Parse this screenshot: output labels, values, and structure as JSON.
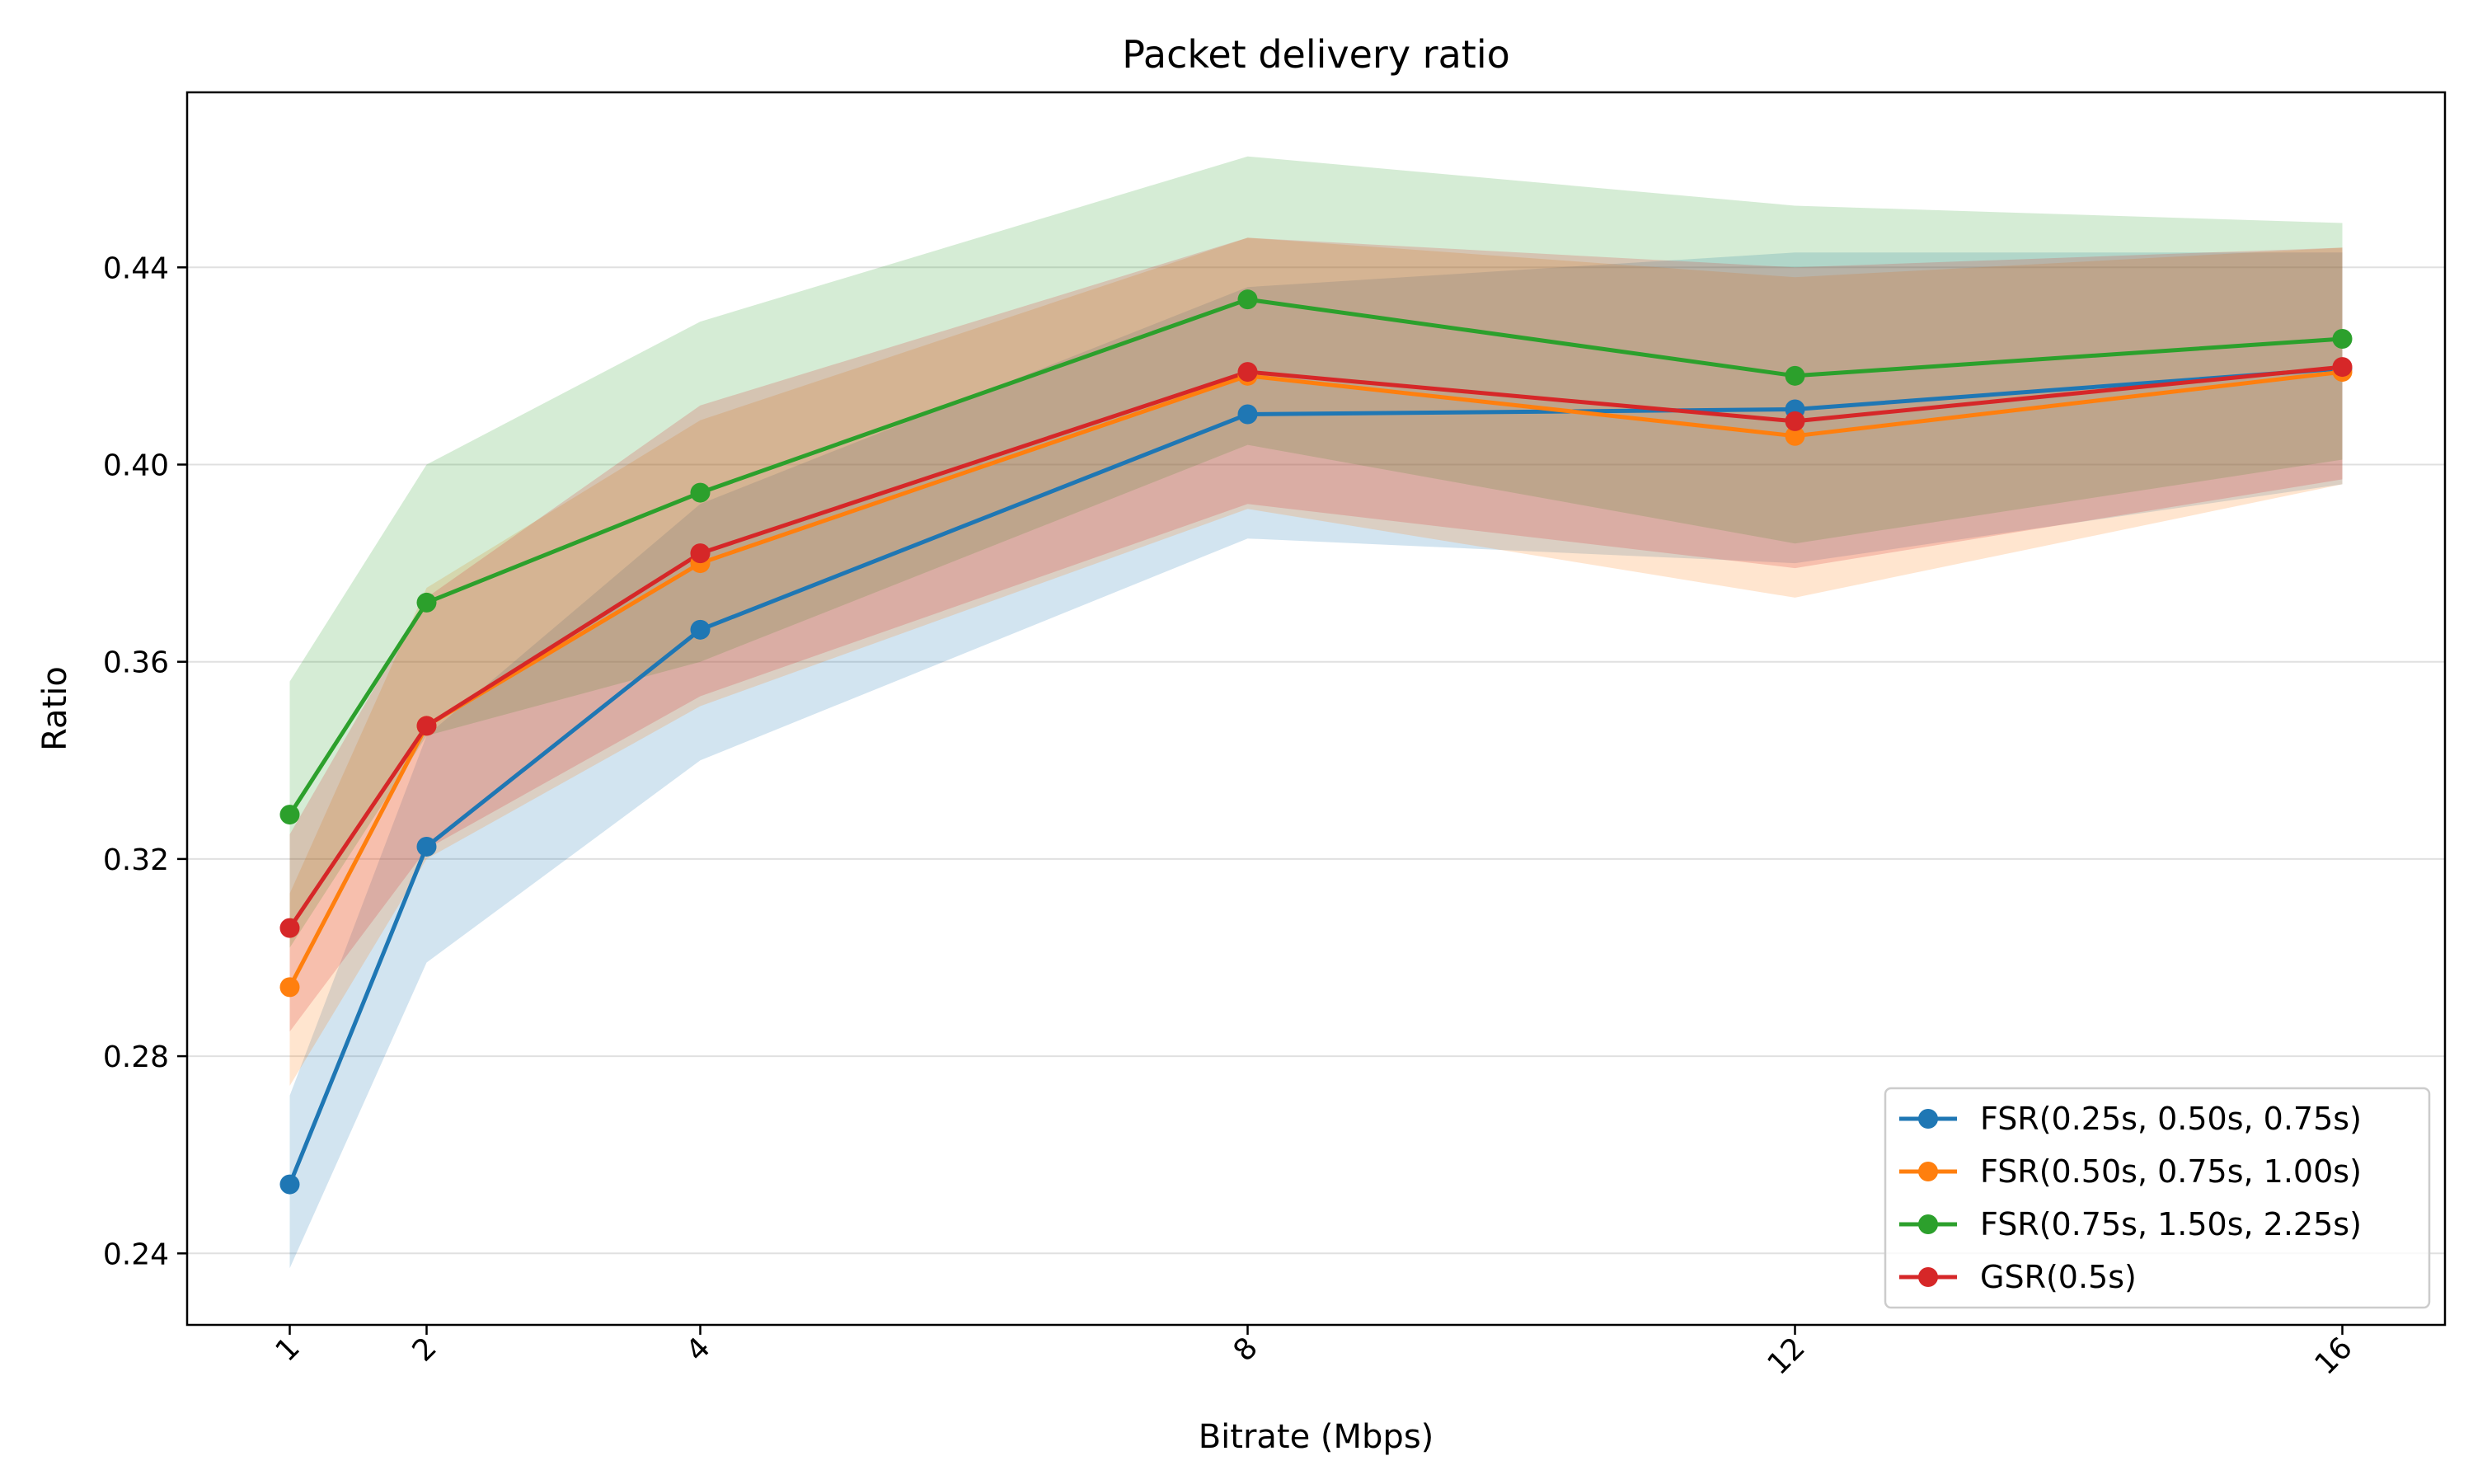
{
  "chart_data": {
    "type": "line",
    "title": "Packet delivery ratio",
    "xlabel": "Bitrate (Mbps)",
    "ylabel": "Ratio",
    "x": [
      1,
      2,
      4,
      8,
      12,
      16
    ],
    "xtick_labels": [
      "1",
      "2",
      "4",
      "8",
      "12",
      "16"
    ],
    "ytick_values": [
      0.24,
      0.28,
      0.32,
      0.36,
      0.4,
      0.44
    ],
    "ytick_labels": [
      "0.24",
      "0.28",
      "0.32",
      "0.36",
      "0.40",
      "0.44"
    ],
    "xlim": [
      0.25,
      16.75
    ],
    "ylim": [
      0.2255,
      0.4755
    ],
    "grid": "horizontal",
    "legend_position": "lower right",
    "series": [
      {
        "name": "FSR(0.25s, 0.50s, 0.75s)",
        "color": "#1f77b4",
        "values": [
          0.254,
          0.3225,
          0.3665,
          0.4102,
          0.4112,
          0.4195
        ],
        "lower": [
          0.237,
          0.299,
          0.34,
          0.385,
          0.38,
          0.396
        ],
        "upper": [
          0.272,
          0.345,
          0.392,
          0.436,
          0.443,
          0.443
        ]
      },
      {
        "name": "FSR(0.50s, 0.75s, 1.00s)",
        "color": "#ff7f0e",
        "values": [
          0.294,
          0.347,
          0.38,
          0.418,
          0.4058,
          0.4188
        ],
        "lower": [
          0.274,
          0.32,
          0.351,
          0.391,
          0.373,
          0.396
        ],
        "upper": [
          0.313,
          0.375,
          0.409,
          0.446,
          0.438,
          0.444
        ]
      },
      {
        "name": "FSR(0.75s, 1.50s, 2.25s)",
        "color": "#2ca02c",
        "values": [
          0.329,
          0.372,
          0.3943,
          0.4335,
          0.418,
          0.4255
        ],
        "lower": [
          0.302,
          0.345,
          0.36,
          0.404,
          0.384,
          0.401
        ],
        "upper": [
          0.356,
          0.4,
          0.429,
          0.4625,
          0.4525,
          0.449
        ]
      },
      {
        "name": "GSR(0.5s)",
        "color": "#d62728",
        "values": [
          0.306,
          0.347,
          0.382,
          0.4188,
          0.4088,
          0.4198
        ],
        "lower": [
          0.285,
          0.322,
          0.353,
          0.392,
          0.379,
          0.397
        ],
        "upper": [
          0.325,
          0.373,
          0.412,
          0.446,
          0.44,
          0.444
        ]
      }
    ]
  }
}
